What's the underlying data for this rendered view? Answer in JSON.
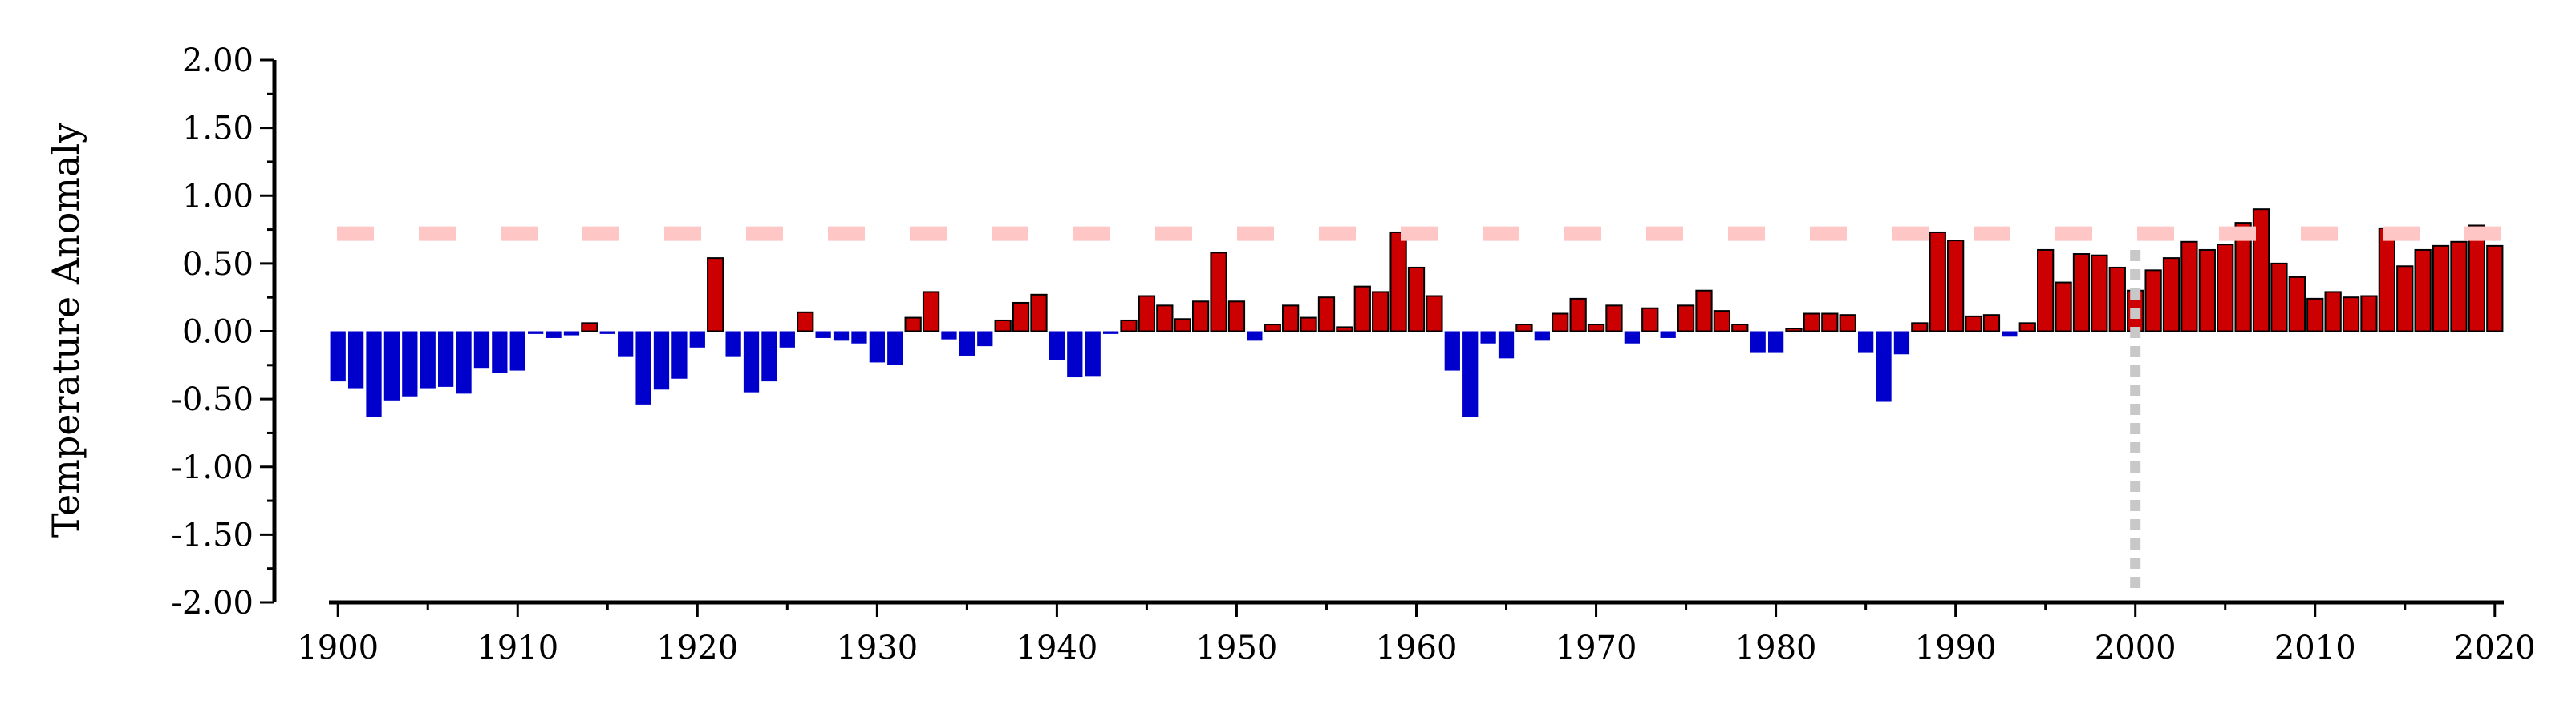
{
  "chart_data": {
    "type": "bar",
    "ylabel": "Temperature Anomaly",
    "xlabel": "",
    "ylim": [
      -2.0,
      2.0
    ],
    "xlim": [
      1899.5,
      2020.5
    ],
    "y_ticks": [
      "2.00",
      "1.50",
      "1.00",
      "0.50",
      "0.00",
      "-0.50",
      "-1.00",
      "-1.50",
      "-2.00"
    ],
    "x_ticks": [
      "1900",
      "1910",
      "1920",
      "1930",
      "1940",
      "1950",
      "1960",
      "1970",
      "1980",
      "1990",
      "2000",
      "2010",
      "2020"
    ],
    "grid": false,
    "legend": "none",
    "colors": {
      "positive": "#cc0000",
      "negative": "#0000cc",
      "bar_edge": "#000000",
      "reference_line": "#ffc6c6",
      "marker_line": "#c8c8c8"
    },
    "reference_line": {
      "y": 0.72,
      "style": "dashed"
    },
    "vertical_marker": {
      "x": 2000,
      "style": "dotted"
    },
    "years": [
      1900,
      1901,
      1902,
      1903,
      1904,
      1905,
      1906,
      1907,
      1908,
      1909,
      1910,
      1911,
      1912,
      1913,
      1914,
      1915,
      1916,
      1917,
      1918,
      1919,
      1920,
      1921,
      1922,
      1923,
      1924,
      1925,
      1926,
      1927,
      1928,
      1929,
      1930,
      1931,
      1932,
      1933,
      1934,
      1935,
      1936,
      1937,
      1938,
      1939,
      1940,
      1941,
      1942,
      1943,
      1944,
      1945,
      1946,
      1947,
      1948,
      1949,
      1950,
      1951,
      1952,
      1953,
      1954,
      1955,
      1956,
      1957,
      1958,
      1959,
      1960,
      1961,
      1962,
      1963,
      1964,
      1965,
      1966,
      1967,
      1968,
      1969,
      1970,
      1971,
      1972,
      1973,
      1974,
      1975,
      1976,
      1977,
      1978,
      1979,
      1980,
      1981,
      1982,
      1983,
      1984,
      1985,
      1986,
      1987,
      1988,
      1989,
      1990,
      1991,
      1992,
      1993,
      1994,
      1995,
      1996,
      1997,
      1998,
      1999,
      2000,
      2001,
      2002,
      2003,
      2004,
      2005,
      2006,
      2007,
      2008,
      2009,
      2010,
      2011,
      2012,
      2013,
      2014,
      2015,
      2016,
      2017,
      2018,
      2019,
      2020
    ],
    "values": [
      -0.37,
      -0.42,
      -0.63,
      -0.51,
      -0.48,
      -0.42,
      -0.41,
      -0.46,
      -0.27,
      -0.31,
      -0.29,
      -0.02,
      -0.05,
      -0.03,
      0.06,
      -0.02,
      -0.19,
      -0.54,
      -0.43,
      -0.35,
      -0.12,
      0.54,
      -0.19,
      -0.45,
      -0.37,
      -0.12,
      0.14,
      -0.05,
      -0.07,
      -0.09,
      -0.23,
      -0.25,
      0.1,
      0.29,
      -0.06,
      -0.18,
      -0.11,
      0.08,
      0.21,
      0.27,
      -0.21,
      -0.34,
      -0.33,
      -0.02,
      0.08,
      0.26,
      0.19,
      0.09,
      0.22,
      0.58,
      0.22,
      -0.07,
      0.05,
      0.19,
      0.1,
      0.25,
      0.03,
      0.33,
      0.29,
      0.73,
      0.47,
      0.26,
      -0.29,
      -0.63,
      -0.09,
      -0.2,
      0.05,
      -0.07,
      0.13,
      0.24,
      0.05,
      0.19,
      -0.09,
      0.17,
      -0.05,
      0.19,
      0.3,
      0.15,
      0.05,
      -0.16,
      -0.16,
      0.02,
      0.13,
      0.13,
      0.12,
      -0.16,
      -0.52,
      -0.17,
      0.06,
      0.73,
      0.67,
      0.11,
      0.12,
      -0.04,
      0.06,
      0.6,
      0.36,
      0.57,
      0.56,
      0.47,
      0.3,
      0.45,
      0.54,
      0.66,
      0.6,
      0.64,
      0.8,
      0.9,
      0.5,
      0.4,
      0.24,
      0.29,
      0.25,
      0.26,
      0.76,
      0.48,
      0.6,
      0.63,
      0.66,
      0.78,
      0.63
    ]
  }
}
